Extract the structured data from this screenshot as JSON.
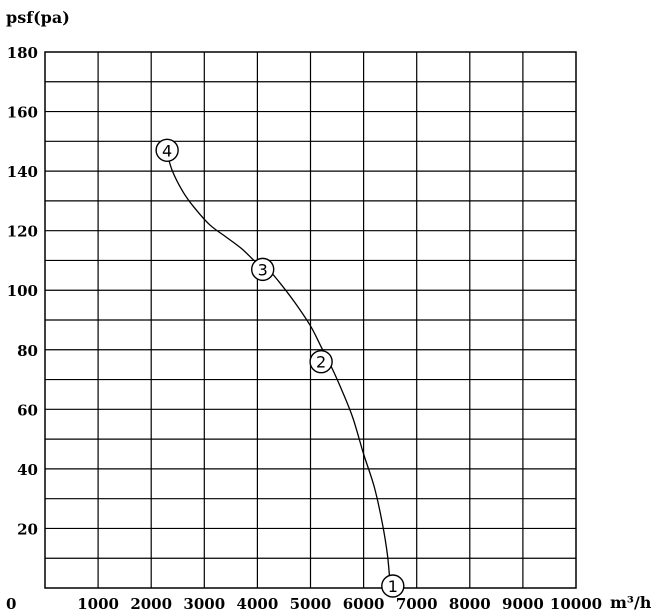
{
  "chart_data": {
    "type": "line",
    "ylabel": "psf(pa)",
    "xlabel": "m³/h",
    "xlim": [
      0,
      10000
    ],
    "ylim": [
      0,
      180
    ],
    "grid": true,
    "x_ticks": [
      "0",
      "1000",
      "2000",
      "3000",
      "4000",
      "5000",
      "6000",
      "7000",
      "8000",
      "9000",
      "10000"
    ],
    "y_ticks": [
      "20",
      "40",
      "60",
      "80",
      "100",
      "120",
      "140",
      "160",
      "180"
    ],
    "series": [
      {
        "points": [
          [
            2300,
            146
          ],
          [
            2400,
            140
          ],
          [
            2600,
            133
          ],
          [
            2800,
            128
          ],
          [
            3100,
            122
          ],
          [
            3400,
            118
          ],
          [
            3700,
            114
          ],
          [
            4000,
            109
          ],
          [
            4200,
            107
          ],
          [
            4400,
            103
          ],
          [
            4700,
            96
          ],
          [
            5000,
            88
          ],
          [
            5200,
            81
          ],
          [
            5400,
            74
          ],
          [
            5600,
            66
          ],
          [
            5800,
            57
          ],
          [
            6000,
            45
          ],
          [
            6200,
            34
          ],
          [
            6350,
            22
          ],
          [
            6450,
            11
          ],
          [
            6500,
            1
          ]
        ]
      }
    ],
    "markers": [
      {
        "label": "1",
        "x": 6550,
        "y": 0
      },
      {
        "label": "2",
        "x": 5200,
        "y": 76
      },
      {
        "label": "3",
        "x": 4100,
        "y": 107
      },
      {
        "label": "4",
        "x": 2300,
        "y": 147
      }
    ]
  }
}
